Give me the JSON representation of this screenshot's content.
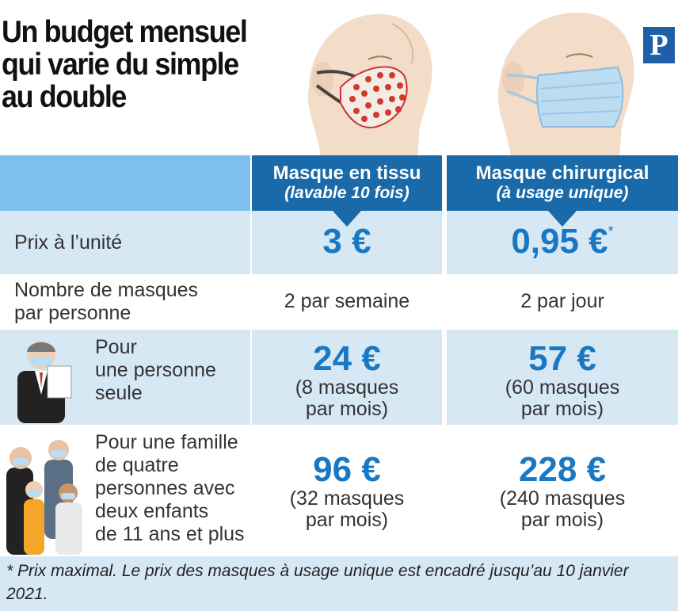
{
  "title": "Un budget mensuel\nqui varie du simple\nau double",
  "logo_letter": "P",
  "columns": [
    {
      "name": "Masque en tissu",
      "detail": "(lavable 10 fois)"
    },
    {
      "name": "Masque chirurgical",
      "detail": "(à usage unique)"
    }
  ],
  "rows": {
    "unit_price": {
      "label": "Prix à l’unité",
      "tissu": "3 €",
      "chirurgical": "0,95 €",
      "chirurgical_mark": "*"
    },
    "count": {
      "label_line1": "Nombre de masques",
      "label_line2": "par personne",
      "tissu": "2 par semaine",
      "chirurgical": "2 par jour"
    },
    "single": {
      "label_line1": "Pour",
      "label_line2": "une personne",
      "label_line3": "seule",
      "tissu_price": "24 €",
      "tissu_detail1": "(8 masques",
      "tissu_detail2": "par mois)",
      "chir_price": "57 €",
      "chir_detail1": "(60 masques",
      "chir_detail2": "par mois)"
    },
    "family": {
      "label_line1": "Pour une famille",
      "label_line2": "de quatre",
      "label_line3": "personnes avec",
      "label_line4": "deux enfants",
      "label_line5": "de 11 ans et plus",
      "tissu_price": "96 €",
      "tissu_detail1": "(32 masques",
      "tissu_detail2": "par mois)",
      "chir_price": "228 €",
      "chir_detail1": "(240 masques",
      "chir_detail2": "par mois)"
    }
  },
  "footnote": "* Prix maximal. Le prix des masques à usage unique est encadré jusqu’au 10 janvier 2021.",
  "colors": {
    "header_dark": "#1a6aa9",
    "header_light": "#7ec0ec",
    "row_tint": "#d7e8f5",
    "price_blue": "#1a78c2"
  }
}
